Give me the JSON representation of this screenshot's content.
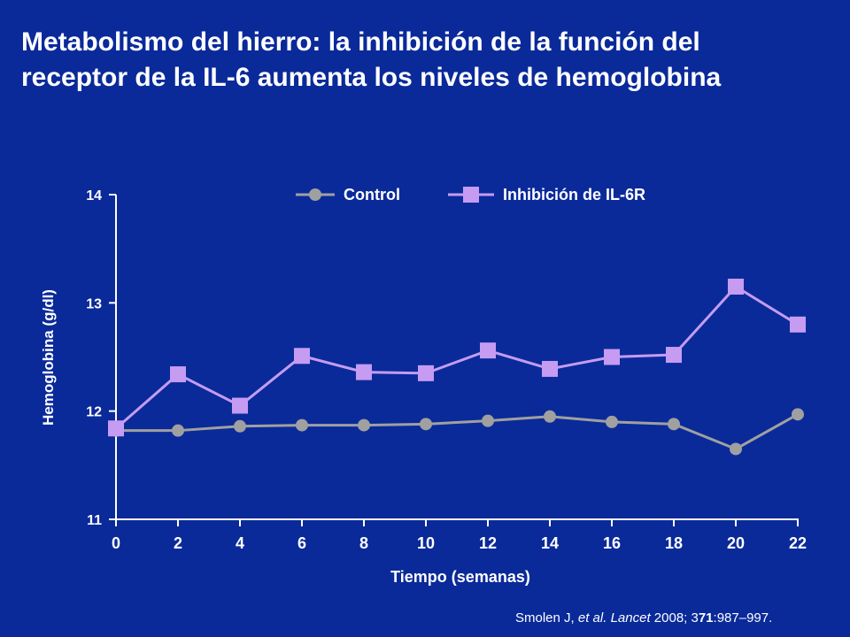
{
  "title": {
    "line1": "Metabolismo del hierro: la inhibición de la función del",
    "line2": "receptor de la IL-6 aumenta los niveles de hemoglobina"
  },
  "citation": {
    "authors": "Smolen J, ",
    "etal": "et al.",
    "journal": "Lancet",
    "year_vol": " 2008; 3",
    "vol_bold": "71",
    "pages": ":987–997."
  },
  "colors": {
    "background": "#0a2a9a",
    "control": "#a0a0a0",
    "il6r": "#c59cf2",
    "axis": "#ffffff"
  },
  "chart_data": {
    "type": "line",
    "xlabel": "Tiempo (semanas)",
    "ylabel": "Hemoglobina (g/dl)",
    "xlim": [
      0,
      22
    ],
    "ylim": [
      11,
      14
    ],
    "xticks": [
      0,
      2,
      4,
      6,
      8,
      10,
      12,
      14,
      16,
      18,
      20,
      22
    ],
    "yticks": [
      11,
      12,
      13,
      14
    ],
    "legend_position": "top",
    "series": [
      {
        "name": "Control",
        "marker": "circle",
        "x": [
          0,
          2,
          4,
          6,
          8,
          10,
          12,
          14,
          16,
          18,
          20,
          22
        ],
        "values": [
          11.82,
          11.82,
          11.86,
          11.87,
          11.87,
          11.88,
          11.91,
          11.95,
          11.9,
          11.88,
          11.65,
          11.97
        ]
      },
      {
        "name": "Inhibición de IL-6R",
        "marker": "square",
        "x": [
          0,
          2,
          4,
          6,
          8,
          10,
          12,
          14,
          16,
          18,
          20,
          22
        ],
        "values": [
          11.84,
          12.34,
          12.05,
          12.51,
          12.36,
          12.35,
          12.56,
          12.39,
          12.5,
          12.52,
          13.15,
          12.8
        ]
      }
    ]
  }
}
